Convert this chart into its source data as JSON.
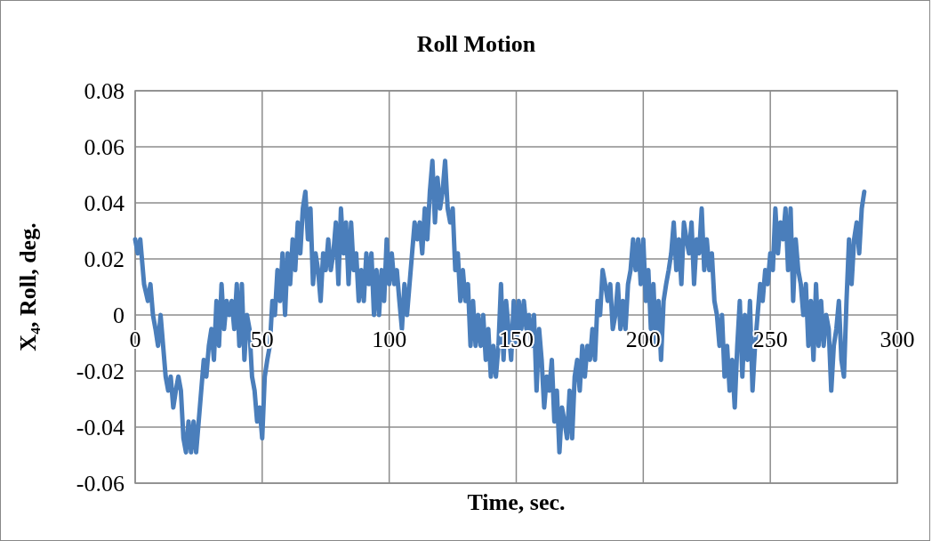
{
  "chart_data": {
    "type": "line",
    "title": "Roll Motion",
    "xlabel": "Time, sec.",
    "ylabel": "X₄, Roll, deg.",
    "xlim": [
      0,
      300
    ],
    "xticks": [
      0,
      50,
      100,
      150,
      200,
      250,
      300
    ],
    "ylim": [
      -0.06,
      0.08
    ],
    "yticks": [
      {
        "value": -0.06,
        "label": "-0.06"
      },
      {
        "value": -0.04,
        "label": "-0.04"
      },
      {
        "value": -0.02,
        "label": "-0.02"
      },
      {
        "value": 0,
        "label": "0"
      },
      {
        "value": 0.02,
        "label": "0.02"
      },
      {
        "value": 0.04,
        "label": "0.04"
      },
      {
        "value": 0.06,
        "label": "0.06"
      },
      {
        "value": 0.08,
        "label": "0.08"
      }
    ],
    "grid": true,
    "marker": "none",
    "line_style": "solid",
    "series": [
      {
        "color": "#4a7ebb",
        "x": [
          0,
          1,
          2,
          3.5,
          5,
          6,
          7,
          8,
          9,
          10,
          11,
          12,
          13,
          14,
          15,
          16,
          17,
          18,
          19,
          20,
          21,
          22,
          23,
          24,
          25,
          26,
          27,
          28,
          29,
          30,
          31,
          32,
          33,
          34,
          35,
          36,
          37,
          38,
          39,
          40,
          41,
          42,
          43,
          44,
          45,
          46,
          47,
          48,
          49,
          50,
          51,
          52,
          53,
          54,
          55,
          56,
          57,
          58,
          59,
          60,
          61,
          62,
          63,
          64,
          65,
          66,
          67,
          68,
          69,
          70,
          71,
          72,
          73,
          74,
          75,
          76,
          77,
          78,
          79,
          80,
          81,
          82,
          83,
          84,
          85,
          86,
          87,
          88,
          89,
          90,
          91,
          92,
          93,
          94,
          95,
          96,
          97,
          98,
          99,
          100,
          101,
          102,
          103,
          104,
          105,
          106,
          107,
          108,
          109,
          110,
          111,
          112,
          113,
          114,
          115,
          116,
          117,
          118,
          119,
          120,
          121,
          122,
          123,
          124,
          125,
          126,
          127,
          128,
          129,
          130,
          131,
          132,
          133,
          134,
          135,
          136,
          137,
          138,
          139,
          140,
          141,
          142,
          143,
          144,
          145,
          146,
          147,
          148,
          149,
          150,
          151,
          152,
          153,
          154,
          155,
          156,
          157,
          158,
          159,
          160,
          161,
          162,
          163,
          164,
          165,
          166,
          167,
          168,
          169,
          170,
          171,
          172,
          173,
          174,
          175,
          176,
          177,
          178,
          179,
          180,
          181,
          182,
          183,
          184,
          185,
          186,
          187,
          188,
          189,
          190,
          191,
          192,
          193,
          194,
          195,
          196,
          197,
          198,
          199,
          200,
          201,
          202,
          203,
          204,
          205,
          206,
          207,
          208,
          209,
          210,
          211,
          212,
          213,
          214,
          215,
          216,
          217,
          218,
          219,
          220,
          221,
          222,
          223,
          224,
          225,
          226,
          227,
          228,
          229,
          230,
          231,
          232,
          233,
          234,
          235,
          236,
          237,
          238,
          239,
          240,
          241,
          242,
          243,
          244,
          245,
          246,
          247,
          248,
          249,
          250,
          251,
          252,
          253,
          254,
          255,
          256,
          257,
          258,
          259,
          260,
          261,
          262,
          263,
          264,
          265,
          266,
          267,
          268,
          269,
          270,
          271,
          272,
          273,
          274,
          275,
          276,
          277,
          278,
          279,
          280,
          281,
          282,
          283,
          284,
          285,
          286,
          287
        ],
        "values": [
          0.027,
          0.022,
          0.027,
          0.011,
          0.005,
          0.011,
          0.0,
          -0.005,
          -0.011,
          0.0,
          -0.011,
          -0.022,
          -0.027,
          -0.022,
          -0.033,
          -0.027,
          -0.022,
          -0.027,
          -0.044,
          -0.049,
          -0.038,
          -0.049,
          -0.038,
          -0.049,
          -0.038,
          -0.027,
          -0.016,
          -0.022,
          -0.011,
          -0.005,
          -0.016,
          0.005,
          -0.011,
          0.011,
          -0.005,
          0.005,
          0.0,
          0.005,
          -0.005,
          0.011,
          -0.011,
          0.011,
          -0.016,
          0.0,
          -0.005,
          -0.022,
          -0.027,
          -0.038,
          -0.033,
          -0.044,
          -0.022,
          -0.016,
          -0.011,
          0.005,
          0.0,
          0.016,
          0.005,
          0.022,
          0.0,
          0.022,
          0.011,
          0.027,
          0.016,
          0.033,
          0.022,
          0.038,
          0.044,
          0.027,
          0.038,
          0.011,
          0.022,
          0.016,
          0.005,
          0.022,
          0.016,
          0.027,
          0.016,
          0.022,
          0.033,
          0.011,
          0.038,
          0.022,
          0.033,
          0.011,
          0.033,
          0.016,
          0.022,
          0.005,
          0.016,
          0.005,
          0.022,
          0.011,
          0.022,
          0.0,
          0.016,
          0.0,
          0.016,
          0.005,
          0.027,
          0.011,
          0.022,
          0.011,
          0.016,
          0.005,
          -0.005,
          0.011,
          0.0,
          0.011,
          0.022,
          0.033,
          0.027,
          0.033,
          0.022,
          0.038,
          0.027,
          0.044,
          0.055,
          0.033,
          0.049,
          0.038,
          0.044,
          0.055,
          0.038,
          0.033,
          0.038,
          0.016,
          0.022,
          0.005,
          0.016,
          0.005,
          0.011,
          -0.011,
          0.005,
          -0.011,
          0.0,
          -0.011,
          0.0,
          -0.016,
          -0.005,
          -0.022,
          -0.011,
          -0.022,
          -0.011,
          0.011,
          -0.016,
          0.005,
          -0.005,
          -0.016,
          0.005,
          -0.011,
          0.005,
          -0.005,
          0.005,
          -0.005,
          0.0,
          -0.011,
          0.0,
          -0.027,
          -0.005,
          -0.016,
          -0.033,
          -0.022,
          -0.027,
          -0.016,
          -0.038,
          -0.027,
          -0.049,
          -0.033,
          -0.038,
          -0.044,
          -0.027,
          -0.044,
          -0.022,
          -0.016,
          -0.027,
          -0.011,
          -0.022,
          -0.011,
          -0.016,
          -0.005,
          -0.016,
          0.005,
          0.0,
          0.016,
          0.011,
          0.005,
          0.011,
          -0.005,
          0.0,
          0.011,
          -0.005,
          0.005,
          -0.005,
          0.011,
          0.016,
          0.027,
          0.016,
          0.027,
          0.011,
          0.027,
          0.005,
          0.016,
          -0.005,
          0.011,
          -0.011,
          0.005,
          -0.016,
          0.005,
          0.011,
          0.016,
          0.022,
          0.033,
          0.016,
          0.027,
          0.011,
          0.033,
          0.027,
          0.022,
          0.033,
          0.011,
          0.027,
          0.022,
          0.038,
          0.016,
          0.027,
          0.016,
          0.022,
          0.005,
          0.0,
          -0.011,
          0.0,
          -0.022,
          -0.011,
          -0.027,
          -0.016,
          -0.033,
          -0.011,
          0.005,
          -0.022,
          0.0,
          -0.016,
          0.005,
          -0.027,
          -0.011,
          0.0,
          0.011,
          0.005,
          0.016,
          0.011,
          0.022,
          0.016,
          0.038,
          0.022,
          0.033,
          0.027,
          0.038,
          0.016,
          0.038,
          0.005,
          0.027,
          0.016,
          0.011,
          0.0,
          0.011,
          -0.011,
          0.005,
          -0.016,
          0.011,
          -0.011,
          0.005,
          -0.011,
          0.0,
          -0.005,
          -0.027,
          -0.011,
          -0.005,
          0.005,
          -0.016,
          -0.022,
          0.005,
          0.027,
          0.011,
          0.027,
          0.033,
          0.022,
          0.038,
          0.044
        ]
      }
    ]
  }
}
